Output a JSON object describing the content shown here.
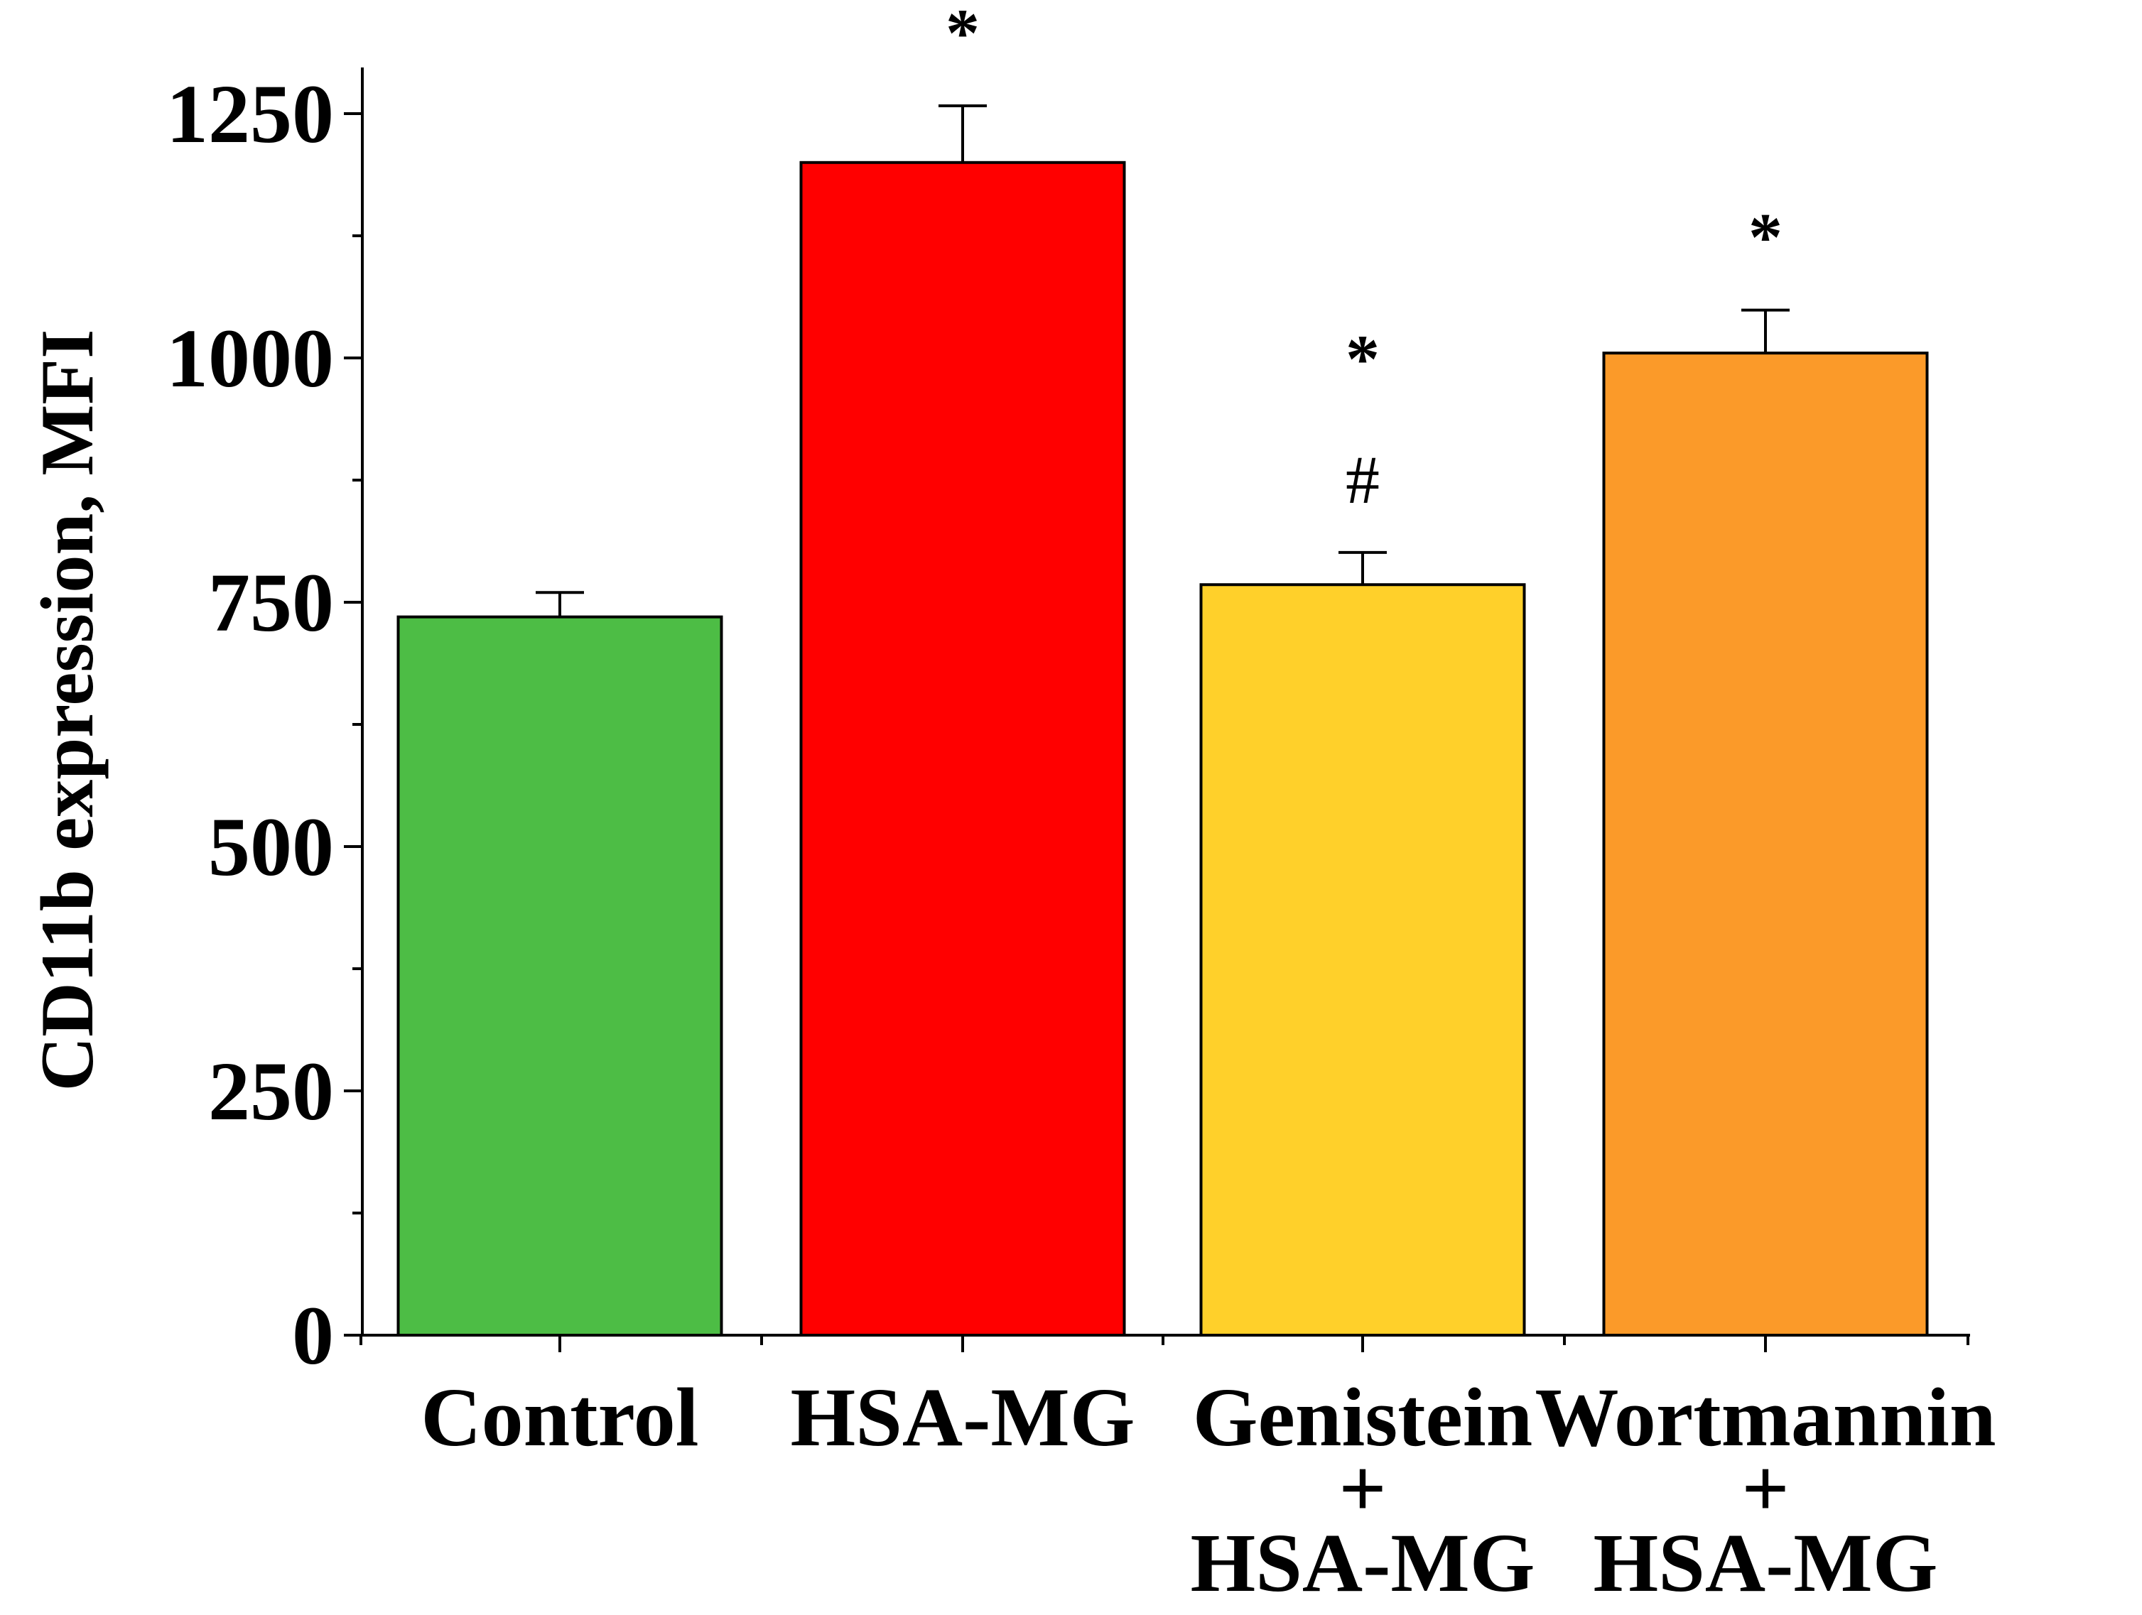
{
  "chart_data": {
    "type": "bar",
    "title": "",
    "xlabel": "",
    "ylabel": "CD11b expression, MFI",
    "ylim": [
      0,
      1300
    ],
    "yticks": [
      0,
      250,
      500,
      750,
      1000,
      1250
    ],
    "minor_ticks": [
      125,
      375,
      625,
      875,
      1125
    ],
    "grid": false,
    "legend": "none",
    "categories": [
      {
        "id": "control",
        "lines": [
          "Control"
        ]
      },
      {
        "id": "hsa-mg",
        "lines": [
          "HSA-MG"
        ]
      },
      {
        "id": "genistein-hsa-mg",
        "lines": [
          "Genistein",
          "+",
          "HSA-MG"
        ]
      },
      {
        "id": "wortmannin-hsa-mg",
        "lines": [
          "Wortmannin",
          "+",
          "HSA-MG"
        ]
      }
    ],
    "values": [
      735,
      1200,
      768,
      1005
    ],
    "errors": [
      25,
      58,
      33,
      44
    ],
    "colors": [
      "#4dbd45",
      "#ff0000",
      "#ffd02a",
      "#fb9a29"
    ],
    "annotations": [
      [],
      [
        "*"
      ],
      [
        "#",
        "*"
      ],
      [
        "*"
      ]
    ]
  }
}
